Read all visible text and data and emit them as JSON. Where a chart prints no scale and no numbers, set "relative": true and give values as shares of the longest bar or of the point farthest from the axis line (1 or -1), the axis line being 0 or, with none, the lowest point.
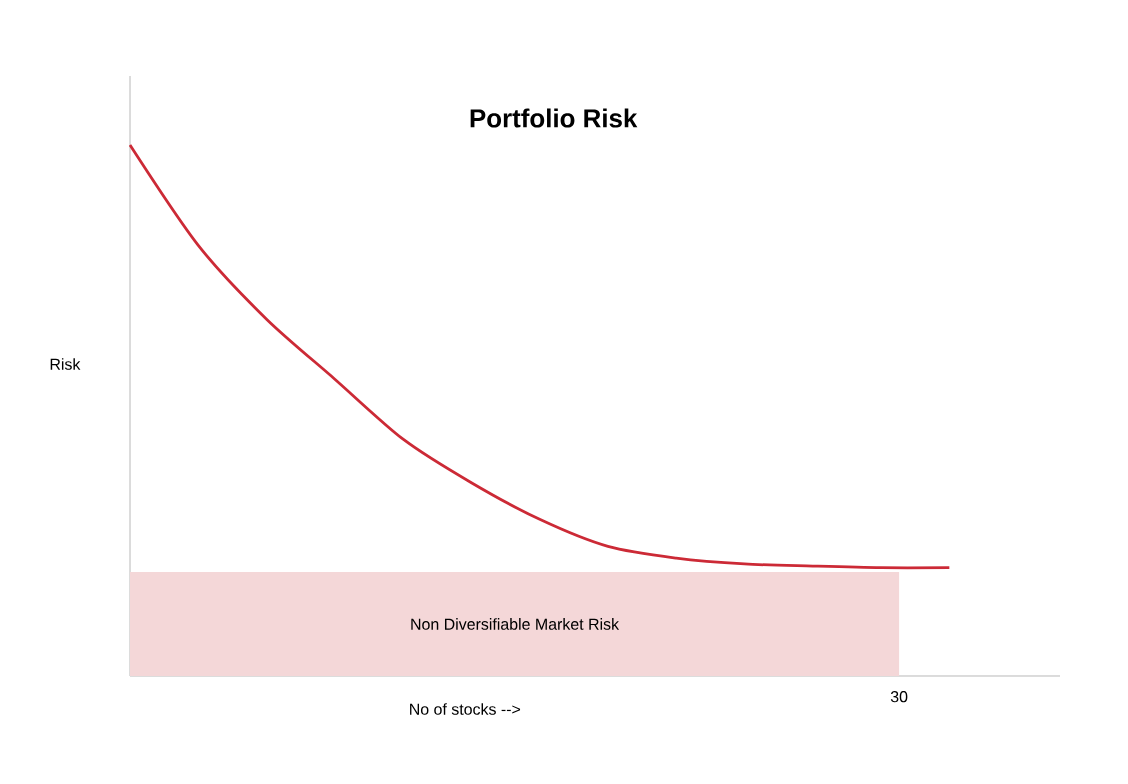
{
  "chart_data": {
    "type": "line",
    "title": "Portfolio Risk",
    "xlabel": "No of stocks  -->",
    "ylabel": "Risk",
    "relative": true,
    "categories": [
      null,
      null,
      null,
      null,
      null,
      null,
      null,
      null,
      null,
      null,
      null,
      null,
      null
    ],
    "series": [
      {
        "color": "#cc2a36",
        "values": [
          1,
          0.811,
          0.672,
          0.559,
          0.446,
          0.364,
          0.295,
          0.244,
          0.222,
          0.211,
          0.207,
          0.204,
          0.204
        ]
      }
    ],
    "annotations": [
      "30"
    ],
    "bands": [
      {
        "axis": "y",
        "from": 0,
        "to": 0.196,
        "label": "Non Diversifiable Market Risk",
        "color": "#f4d7d8"
      }
    ],
    "marker": "none",
    "line_style": "solid"
  }
}
